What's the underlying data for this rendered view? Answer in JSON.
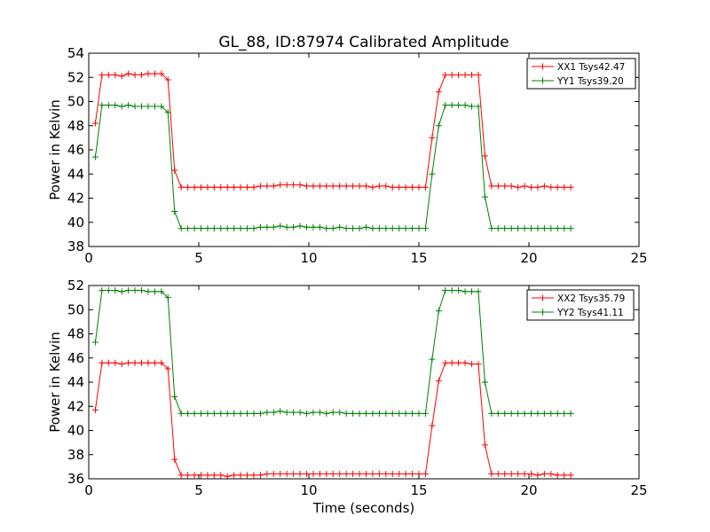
{
  "figure": {
    "title": "GL_88, ID:87974 Calibrated Amplitude",
    "xlabel": "Time (seconds)"
  },
  "chart_data": [
    {
      "type": "line",
      "title": "GL_88, ID:87974 Calibrated Amplitude",
      "xlabel": "",
      "ylabel": "Power in Kelvin",
      "xlim": [
        0,
        25
      ],
      "ylim": [
        38,
        54
      ],
      "xticks": [
        "0",
        "5",
        "10",
        "15",
        "20",
        "25"
      ],
      "yticks": [
        "38",
        "40",
        "42",
        "44",
        "46",
        "48",
        "50",
        "52",
        "54"
      ],
      "grid": false,
      "legend_position": "top-right",
      "x": [
        0.3,
        0.6,
        0.9,
        1.2,
        1.5,
        1.8,
        2.1,
        2.4,
        2.7,
        3.0,
        3.3,
        3.6,
        3.9,
        4.2,
        4.5,
        4.8,
        5.1,
        5.4,
        5.7,
        6.0,
        6.3,
        6.6,
        6.9,
        7.2,
        7.5,
        7.8,
        8.1,
        8.4,
        8.7,
        9.0,
        9.3,
        9.6,
        9.9,
        10.2,
        10.5,
        10.8,
        11.1,
        11.4,
        11.7,
        12.0,
        12.3,
        12.6,
        12.9,
        13.2,
        13.5,
        13.8,
        14.1,
        14.4,
        14.7,
        15.0,
        15.3,
        15.6,
        15.9,
        16.2,
        16.5,
        16.8,
        17.1,
        17.4,
        17.7,
        18.0,
        18.3,
        18.6,
        18.9,
        19.2,
        19.5,
        19.8,
        20.1,
        20.4,
        20.7,
        21.0,
        21.3,
        21.6,
        21.9
      ],
      "series": [
        {
          "name": "XX1 Tsys42.47",
          "color": "#ff0000",
          "values": [
            48.2,
            52.2,
            52.2,
            52.2,
            52.1,
            52.3,
            52.2,
            52.2,
            52.3,
            52.3,
            52.3,
            51.8,
            44.3,
            42.9,
            42.9,
            42.9,
            42.9,
            42.9,
            42.9,
            42.9,
            42.9,
            42.9,
            42.9,
            42.9,
            42.9,
            43.0,
            43.0,
            43.0,
            43.1,
            43.1,
            43.1,
            43.1,
            43.0,
            43.0,
            43.0,
            43.0,
            43.0,
            43.0,
            43.0,
            43.0,
            43.0,
            43.0,
            42.9,
            43.0,
            43.0,
            42.9,
            42.9,
            42.9,
            42.9,
            42.9,
            42.9,
            47.0,
            50.8,
            52.2,
            52.2,
            52.2,
            52.2,
            52.2,
            52.2,
            45.5,
            43.0,
            43.0,
            43.0,
            43.0,
            42.9,
            43.0,
            42.9,
            42.9,
            43.0,
            42.9,
            42.9,
            42.9,
            42.9
          ]
        },
        {
          "name": "YY1 Tsys39.20",
          "color": "#008000",
          "values": [
            45.4,
            49.7,
            49.7,
            49.7,
            49.6,
            49.7,
            49.6,
            49.6,
            49.6,
            49.6,
            49.6,
            49.1,
            40.9,
            39.5,
            39.5,
            39.5,
            39.5,
            39.5,
            39.5,
            39.5,
            39.5,
            39.5,
            39.5,
            39.5,
            39.5,
            39.6,
            39.6,
            39.6,
            39.7,
            39.6,
            39.6,
            39.7,
            39.6,
            39.6,
            39.6,
            39.5,
            39.5,
            39.6,
            39.5,
            39.5,
            39.5,
            39.6,
            39.5,
            39.5,
            39.5,
            39.5,
            39.5,
            39.5,
            39.5,
            39.5,
            39.5,
            44.0,
            48.0,
            49.7,
            49.7,
            49.7,
            49.7,
            49.6,
            49.6,
            42.1,
            39.5,
            39.5,
            39.5,
            39.5,
            39.5,
            39.5,
            39.5,
            39.5,
            39.5,
            39.5,
            39.5,
            39.5,
            39.5
          ]
        }
      ]
    },
    {
      "type": "line",
      "title": "",
      "xlabel": "Time (seconds)",
      "ylabel": "Power in Kelvin",
      "xlim": [
        0,
        25
      ],
      "ylim": [
        36,
        52
      ],
      "xticks": [
        "0",
        "5",
        "10",
        "15",
        "20",
        "25"
      ],
      "yticks": [
        "36",
        "38",
        "40",
        "42",
        "44",
        "46",
        "48",
        "50",
        "52"
      ],
      "grid": false,
      "legend_position": "top-right",
      "x": [
        0.3,
        0.6,
        0.9,
        1.2,
        1.5,
        1.8,
        2.1,
        2.4,
        2.7,
        3.0,
        3.3,
        3.6,
        3.9,
        4.2,
        4.5,
        4.8,
        5.1,
        5.4,
        5.7,
        6.0,
        6.3,
        6.6,
        6.9,
        7.2,
        7.5,
        7.8,
        8.1,
        8.4,
        8.7,
        9.0,
        9.3,
        9.6,
        9.9,
        10.2,
        10.5,
        10.8,
        11.1,
        11.4,
        11.7,
        12.0,
        12.3,
        12.6,
        12.9,
        13.2,
        13.5,
        13.8,
        14.1,
        14.4,
        14.7,
        15.0,
        15.3,
        15.6,
        15.9,
        16.2,
        16.5,
        16.8,
        17.1,
        17.4,
        17.7,
        18.0,
        18.3,
        18.6,
        18.9,
        19.2,
        19.5,
        19.8,
        20.1,
        20.4,
        20.7,
        21.0,
        21.3,
        21.6,
        21.9
      ],
      "series": [
        {
          "name": "XX2 Tsys35.79",
          "color": "#ff0000",
          "values": [
            41.7,
            45.6,
            45.6,
            45.6,
            45.5,
            45.6,
            45.6,
            45.6,
            45.6,
            45.6,
            45.6,
            45.1,
            37.6,
            36.3,
            36.3,
            36.3,
            36.3,
            36.3,
            36.3,
            36.3,
            36.2,
            36.3,
            36.3,
            36.3,
            36.3,
            36.3,
            36.4,
            36.4,
            36.4,
            36.4,
            36.4,
            36.4,
            36.4,
            36.4,
            36.4,
            36.4,
            36.4,
            36.4,
            36.4,
            36.4,
            36.4,
            36.4,
            36.4,
            36.4,
            36.4,
            36.4,
            36.4,
            36.4,
            36.4,
            36.4,
            36.4,
            40.4,
            44.1,
            45.6,
            45.6,
            45.6,
            45.6,
            45.5,
            45.5,
            38.8,
            36.4,
            36.4,
            36.4,
            36.4,
            36.4,
            36.4,
            36.4,
            36.3,
            36.4,
            36.4,
            36.3,
            36.3,
            36.3
          ]
        },
        {
          "name": "YY2 Tsys41.11",
          "color": "#008000",
          "values": [
            47.3,
            51.6,
            51.6,
            51.6,
            51.5,
            51.6,
            51.6,
            51.6,
            51.5,
            51.5,
            51.5,
            51.0,
            42.8,
            41.4,
            41.4,
            41.4,
            41.4,
            41.4,
            41.4,
            41.4,
            41.4,
            41.4,
            41.4,
            41.4,
            41.4,
            41.4,
            41.5,
            41.5,
            41.6,
            41.5,
            41.5,
            41.5,
            41.4,
            41.5,
            41.5,
            41.4,
            41.5,
            41.5,
            41.4,
            41.4,
            41.4,
            41.4,
            41.4,
            41.4,
            41.4,
            41.4,
            41.4,
            41.4,
            41.4,
            41.4,
            41.4,
            45.9,
            49.9,
            51.6,
            51.6,
            51.6,
            51.5,
            51.5,
            51.5,
            44.0,
            41.4,
            41.4,
            41.4,
            41.4,
            41.4,
            41.4,
            41.4,
            41.4,
            41.4,
            41.4,
            41.4,
            41.4,
            41.4
          ]
        }
      ]
    }
  ]
}
